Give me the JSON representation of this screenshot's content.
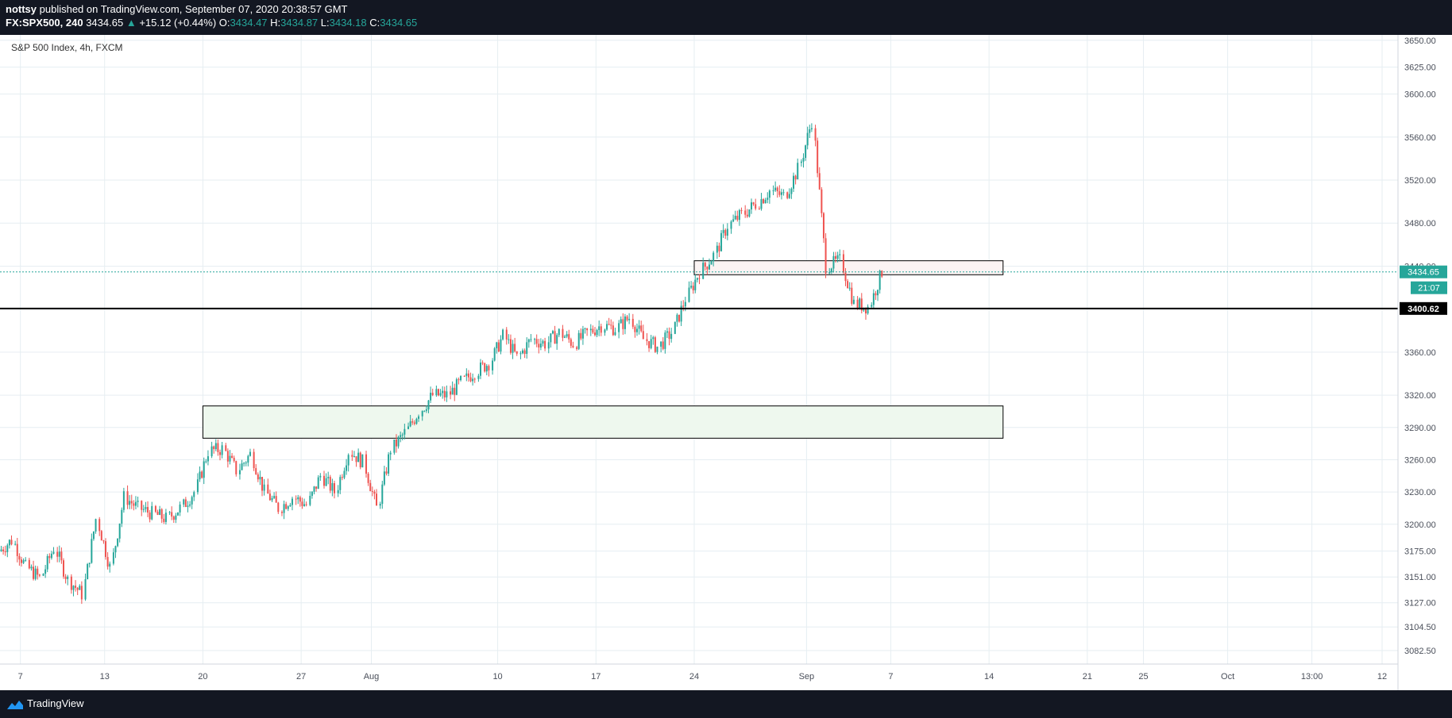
{
  "header": {
    "user": "nottsy",
    "published_text": "published on TradingView.com, September 07, 2020 20:38:57 GMT",
    "symbol": "FX:SPX500, 240",
    "last": "3434.65",
    "change_arrow": "▲",
    "change": "+15.12 (+0.44%)",
    "open_label": "O:",
    "open": "3434.47",
    "high_label": "H:",
    "high": "3434.87",
    "low_label": "L:",
    "low": "3434.18",
    "close_label": "C:",
    "close": "3434.65"
  },
  "footer": {
    "brand": "TradingView",
    "logo_icon": "tradingview-logo-icon"
  },
  "colors": {
    "up": "#26a69a",
    "down": "#ef5350",
    "grid": "#e6eef2",
    "price_tag": "#26a69a",
    "level_line": "#000000",
    "support_zone_fill": "#eef8ee"
  },
  "chart_data": {
    "type": "candlestick",
    "title": "S&P 500 Index, 4h, FXCM",
    "y_axis": {
      "ticks": [
        "3650.00",
        "3625.00",
        "3600.00",
        "3560.00",
        "3520.00",
        "3480.00",
        "3440.00",
        "3400.00",
        "3360.00",
        "3320.00",
        "3290.00",
        "3260.00",
        "3230.00",
        "3200.00",
        "3175.00",
        "3151.00",
        "3127.00",
        "3104.50",
        "3082.50"
      ],
      "range": [
        3070,
        3655
      ]
    },
    "x_axis": {
      "ticks": [
        "7",
        "13",
        "20",
        "27",
        "Aug",
        "10",
        "17",
        "24",
        "Sep",
        "7",
        "14",
        "21",
        "25",
        "Oct",
        "13:00",
        "12"
      ],
      "range": [
        "2020-07-06",
        "2020-10-12"
      ]
    },
    "grid": true,
    "last_price": "3434.65",
    "countdown": "21:07",
    "horizontal_level": {
      "value": 3400.62,
      "label": "3400.62"
    },
    "zones": [
      {
        "name": "resistance-zone",
        "from_date": "2020-08-24",
        "to_date": "2020-09-15",
        "price_low": 3432,
        "price_high": 3445
      },
      {
        "name": "support-zone",
        "from_date": "2020-07-20",
        "to_date": "2020-09-15",
        "price_low": 3280,
        "price_high": 3310
      }
    ],
    "price_path": [
      [
        "2020-07-06",
        3175
      ],
      [
        "2020-07-07",
        3185
      ],
      [
        "2020-07-08",
        3160
      ],
      [
        "2020-07-09",
        3150
      ],
      [
        "2020-07-10",
        3178
      ],
      [
        "2020-07-11",
        3148
      ],
      [
        "2020-07-12",
        3135
      ],
      [
        "2020-07-13",
        3205
      ],
      [
        "2020-07-14",
        3160
      ],
      [
        "2020-07-15",
        3225
      ],
      [
        "2020-07-16",
        3215
      ],
      [
        "2020-07-17",
        3210
      ],
      [
        "2020-07-18",
        3205
      ],
      [
        "2020-07-19",
        3215
      ],
      [
        "2020-07-20",
        3230
      ],
      [
        "2020-07-21",
        3268
      ],
      [
        "2020-07-22",
        3270
      ],
      [
        "2020-07-23",
        3250
      ],
      [
        "2020-07-24",
        3265
      ],
      [
        "2020-07-25",
        3230
      ],
      [
        "2020-07-26",
        3215
      ],
      [
        "2020-07-27",
        3225
      ],
      [
        "2020-07-28",
        3218
      ],
      [
        "2020-07-29",
        3245
      ],
      [
        "2020-07-30",
        3230
      ],
      [
        "2020-07-31",
        3268
      ],
      [
        "2020-08-01",
        3258
      ],
      [
        "2020-08-02",
        3215
      ],
      [
        "2020-08-03",
        3270
      ],
      [
        "2020-08-04",
        3285
      ],
      [
        "2020-08-05",
        3305
      ],
      [
        "2020-08-06",
        3320
      ],
      [
        "2020-08-07",
        3320
      ],
      [
        "2020-08-08",
        3332
      ],
      [
        "2020-08-09",
        3342
      ],
      [
        "2020-08-10",
        3350
      ],
      [
        "2020-08-11",
        3375
      ],
      [
        "2020-08-12",
        3355
      ],
      [
        "2020-08-13",
        3372
      ],
      [
        "2020-08-14",
        3368
      ],
      [
        "2020-08-15",
        3378
      ],
      [
        "2020-08-16",
        3368
      ],
      [
        "2020-08-17",
        3378
      ],
      [
        "2020-08-18",
        3385
      ],
      [
        "2020-08-19",
        3382
      ],
      [
        "2020-08-20",
        3392
      ],
      [
        "2020-08-21",
        3372
      ],
      [
        "2020-08-22",
        3365
      ],
      [
        "2020-08-23",
        3378
      ],
      [
        "2020-08-24",
        3410
      ],
      [
        "2020-08-25",
        3435
      ],
      [
        "2020-08-26",
        3450
      ],
      [
        "2020-08-27",
        3478
      ],
      [
        "2020-08-28",
        3488
      ],
      [
        "2020-08-29",
        3498
      ],
      [
        "2020-08-30",
        3510
      ],
      [
        "2020-08-31",
        3505
      ],
      [
        "2020-09-01",
        3530
      ],
      [
        "2020-09-02",
        3575
      ],
      [
        "2020-09-03",
        3440
      ],
      [
        "2020-09-04",
        3445
      ],
      [
        "2020-09-05",
        3405
      ],
      [
        "2020-09-06",
        3402
      ],
      [
        "2020-09-07",
        3434.65
      ]
    ]
  }
}
